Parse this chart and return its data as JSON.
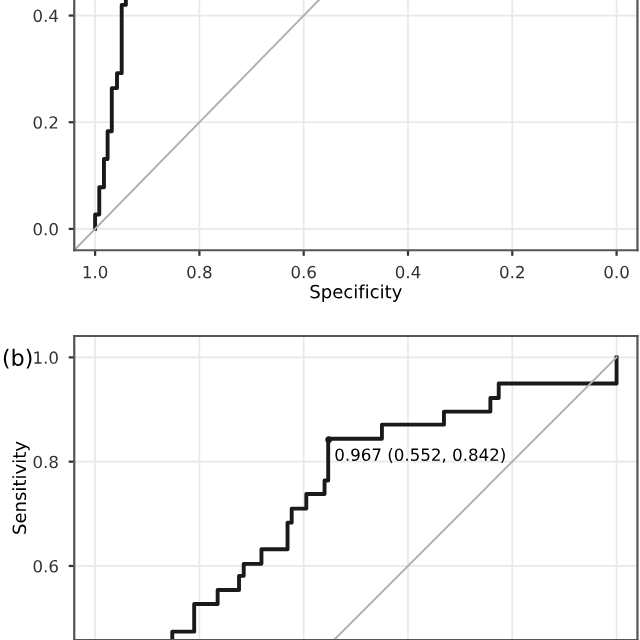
{
  "chart_data": [
    {
      "type": "line",
      "xlabel": "Specificity",
      "xlim": [
        1.04,
        -0.04
      ],
      "ylim": [
        -0.04,
        0.44
      ],
      "xticks": [
        {
          "value": 1,
          "label": "1.0"
        },
        0.8,
        0.6,
        0.4,
        0.2,
        {
          "value": 0,
          "label": "0.0"
        }
      ],
      "yticks": [
        {
          "value": 0,
          "label": "0.0"
        },
        0.2,
        0.4
      ],
      "grid": true,
      "line_style": "solid",
      "series": [
        {
          "color": "#1a1a1a",
          "x": [
            1.0,
            1.0,
            0.992,
            0.992,
            0.983,
            0.983,
            0.976,
            0.976,
            0.968,
            0.968,
            0.958,
            0.958,
            0.949,
            0.949,
            0.941,
            0.941
          ],
          "values": [
            0.0,
            0.027,
            0.027,
            0.078,
            0.078,
            0.131,
            0.131,
            0.183,
            0.183,
            0.264,
            0.264,
            0.292,
            0.292,
            0.42,
            0.42,
            0.44
          ]
        },
        {
          "color": "#b0b0b0",
          "x": [
            1.04,
            0.56
          ],
          "values": [
            -0.04,
            0.44
          ]
        }
      ]
    },
    {
      "type": "line",
      "ylabel": "Sensitivity",
      "xlim": [
        1.04,
        -0.04
      ],
      "ylim": [
        0.458,
        1.041
      ],
      "xticks": [
        1.0,
        0.8,
        0.6,
        0.4,
        0.2,
        0.0
      ],
      "yticks": [
        0.6,
        0.8,
        {
          "value": 1,
          "label": "1.0"
        }
      ],
      "tick_labels": "y",
      "grid": true,
      "line_style": "solid",
      "annotations": [
        {
          "text": "0.967 (0.552, 0.842)",
          "x": 0.552,
          "y": 0.842
        },
        "(b)"
      ],
      "series": [
        {
          "color": "#1a1a1a",
          "x": [
            0.0,
            0.0,
            0.226,
            0.226,
            0.242,
            0.242,
            0.331,
            0.331,
            0.45,
            0.45,
            0.553,
            0.553,
            0.56,
            0.56,
            0.595,
            0.595,
            0.623,
            0.623,
            0.631,
            0.631,
            0.681,
            0.681,
            0.715,
            0.715,
            0.724,
            0.724,
            0.765,
            0.765,
            0.81,
            0.81,
            0.852,
            0.852
          ],
          "values": [
            1.0,
            0.95,
            0.95,
            0.922,
            0.922,
            0.896,
            0.896,
            0.871,
            0.871,
            0.844,
            0.844,
            0.764,
            0.764,
            0.738,
            0.738,
            0.71,
            0.71,
            0.683,
            0.683,
            0.632,
            0.632,
            0.604,
            0.604,
            0.581,
            0.581,
            0.554,
            0.554,
            0.527,
            0.527,
            0.474,
            0.474,
            0.458
          ]
        },
        {
          "color": "#b0b0b0",
          "x": [
            0.0,
            0.542
          ],
          "values": [
            1.0,
            0.458
          ]
        }
      ]
    }
  ]
}
